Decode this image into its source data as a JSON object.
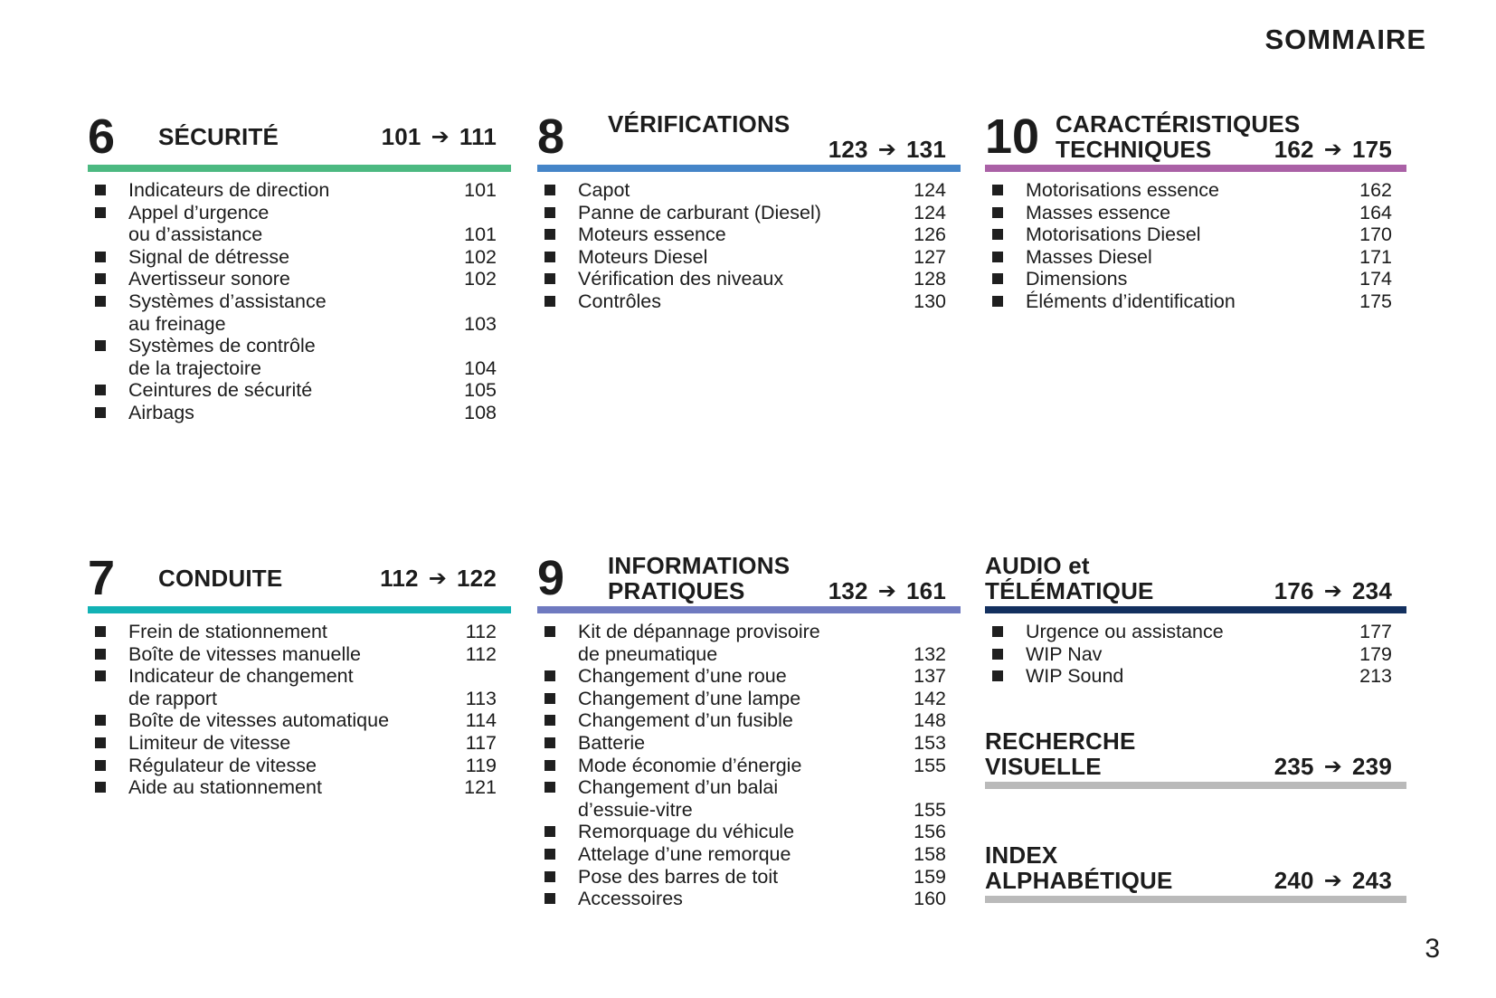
{
  "page": {
    "title": "SOMMAIRE",
    "number": "3"
  },
  "ui": {
    "arrow_glyph": "➔",
    "text_color": "#1c1c1c",
    "bullet_color": "#1f1f1f"
  },
  "sections": [
    {
      "id": "securite",
      "number": "6",
      "title_lines": [
        "SÉCURITÉ"
      ],
      "range": {
        "from": "101",
        "to": "111"
      },
      "bar_color": "#4cb981",
      "items": [
        {
          "lines": [
            "Indicateurs de direction"
          ],
          "page": "101"
        },
        {
          "lines": [
            "Appel d’urgence",
            "ou d’assistance"
          ],
          "page": "101"
        },
        {
          "lines": [
            "Signal de détresse"
          ],
          "page": "102"
        },
        {
          "lines": [
            "Avertisseur sonore"
          ],
          "page": "102"
        },
        {
          "lines": [
            "Systèmes d’assistance",
            "au freinage"
          ],
          "page": "103"
        },
        {
          "lines": [
            "Systèmes de contrôle",
            "de la trajectoire"
          ],
          "page": "104"
        },
        {
          "lines": [
            "Ceintures de sécurité"
          ],
          "page": "105"
        },
        {
          "lines": [
            "Airbags"
          ],
          "page": "108"
        }
      ]
    },
    {
      "id": "verifications",
      "number": "8",
      "title_lines": [
        "VÉRIFICATIONS",
        ""
      ],
      "range": {
        "from": "123",
        "to": "131"
      },
      "bar_color": "#4585c8",
      "items": [
        {
          "lines": [
            "Capot"
          ],
          "page": "124"
        },
        {
          "lines": [
            "Panne de carburant (Diesel)"
          ],
          "page": "124"
        },
        {
          "lines": [
            "Moteurs essence"
          ],
          "page": "126"
        },
        {
          "lines": [
            "Moteurs Diesel"
          ],
          "page": "127"
        },
        {
          "lines": [
            "Vérification des niveaux"
          ],
          "page": "128"
        },
        {
          "lines": [
            "Contrôles"
          ],
          "page": "130"
        }
      ]
    },
    {
      "id": "caracteristiques-techniques",
      "number": "10",
      "title_lines": [
        "CARACTÉRISTIQUES",
        "TECHNIQUES"
      ],
      "range": {
        "from": "162",
        "to": "175"
      },
      "bar_color": "#aa61a6",
      "items": [
        {
          "lines": [
            "Motorisations essence"
          ],
          "page": "162"
        },
        {
          "lines": [
            "Masses essence"
          ],
          "page": "164"
        },
        {
          "lines": [
            "Motorisations Diesel"
          ],
          "page": "170"
        },
        {
          "lines": [
            "Masses Diesel"
          ],
          "page": "171"
        },
        {
          "lines": [
            "Dimensions"
          ],
          "page": "174"
        },
        {
          "lines": [
            "Éléments d’identification"
          ],
          "page": "175"
        }
      ]
    },
    {
      "id": "conduite",
      "number": "7",
      "title_lines": [
        "CONDUITE"
      ],
      "range": {
        "from": "112",
        "to": "122"
      },
      "bar_color": "#12b2b5",
      "items": [
        {
          "lines": [
            "Frein de stationnement"
          ],
          "page": "112"
        },
        {
          "lines": [
            "Boîte de vitesses manuelle"
          ],
          "page": "112"
        },
        {
          "lines": [
            "Indicateur de changement",
            "de rapport"
          ],
          "page": "113"
        },
        {
          "lines": [
            "Boîte de vitesses automatique"
          ],
          "page": "114"
        },
        {
          "lines": [
            "Limiteur de vitesse"
          ],
          "page": "117"
        },
        {
          "lines": [
            "Régulateur de vitesse"
          ],
          "page": "119"
        },
        {
          "lines": [
            "Aide au stationnement"
          ],
          "page": "121"
        }
      ]
    },
    {
      "id": "informations-pratiques",
      "number": "9",
      "title_lines": [
        "INFORMATIONS",
        "PRATIQUES"
      ],
      "range": {
        "from": "132",
        "to": "161"
      },
      "bar_color": "#6f7ac0",
      "items": [
        {
          "lines": [
            "Kit de dépannage provisoire",
            "de pneumatique"
          ],
          "page": "132"
        },
        {
          "lines": [
            "Changement d’une roue"
          ],
          "page": "137"
        },
        {
          "lines": [
            "Changement d’une lampe"
          ],
          "page": "142"
        },
        {
          "lines": [
            "Changement d’un fusible"
          ],
          "page": "148"
        },
        {
          "lines": [
            "Batterie"
          ],
          "page": "153"
        },
        {
          "lines": [
            "Mode économie d’énergie"
          ],
          "page": "155"
        },
        {
          "lines": [
            "Changement d’un balai",
            "d’essuie-vitre"
          ],
          "page": "155"
        },
        {
          "lines": [
            "Remorquage du véhicule"
          ],
          "page": "156"
        },
        {
          "lines": [
            "Attelage d’une remorque"
          ],
          "page": "158"
        },
        {
          "lines": [
            "Pose des barres de toit"
          ],
          "page": "159"
        },
        {
          "lines": [
            "Accessoires"
          ],
          "page": "160"
        }
      ]
    },
    {
      "id": "audio-telematique",
      "number": null,
      "title_lines": [
        "AUDIO et",
        "TÉLÉMATIQUE"
      ],
      "range": {
        "from": "176",
        "to": "234"
      },
      "bar_color": "#13305f",
      "items": [
        {
          "lines": [
            "Urgence ou assistance"
          ],
          "page": "177"
        },
        {
          "lines": [
            "WIP Nav"
          ],
          "page": "179"
        },
        {
          "lines": [
            "WIP Sound"
          ],
          "page": "213"
        }
      ]
    },
    {
      "id": "recherche-visuelle",
      "number": null,
      "title_lines": [
        "RECHERCHE",
        "VISUELLE"
      ],
      "range": {
        "from": "235",
        "to": "239"
      },
      "bar_color": "#bababa",
      "items": []
    },
    {
      "id": "index-alphabetique",
      "number": null,
      "title_lines": [
        "INDEX",
        "ALPHABÉTIQUE"
      ],
      "range": {
        "from": "240",
        "to": "243"
      },
      "bar_color": "#bababa",
      "items": []
    }
  ]
}
